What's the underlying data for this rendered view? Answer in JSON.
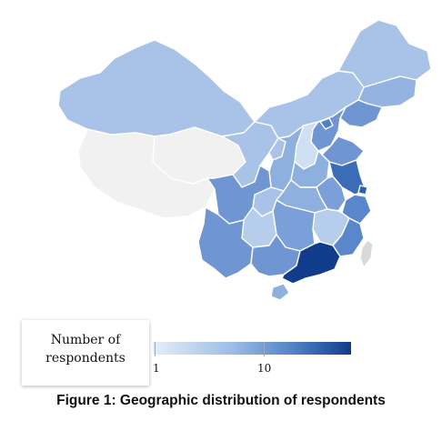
{
  "legend": {
    "title_line1": "Number of",
    "title_line2": "respondents",
    "ticks": [
      "1",
      "10"
    ],
    "scale_colors": [
      "#e6eef9",
      "#9cbde6",
      "#4f7fc6",
      "#113c8c"
    ]
  },
  "caption": "Figure 1: Geographic distribution of respondents",
  "regions": [
    {
      "name": "Xinjiang",
      "level": "low",
      "color": "#a9c3e8"
    },
    {
      "name": "Tibet",
      "level": "none",
      "color": "#f1f1f1"
    },
    {
      "name": "Qinghai",
      "level": "none",
      "color": "#f1f1f1"
    },
    {
      "name": "Gansu",
      "level": "low",
      "color": "#a9c3e8"
    },
    {
      "name": "Inner Mongolia",
      "level": "low",
      "color": "#a9c3e8"
    },
    {
      "name": "Heilongjiang",
      "level": "low",
      "color": "#a9c3e8"
    },
    {
      "name": "Jilin",
      "level": "mid",
      "color": "#94b3e0"
    },
    {
      "name": "Liaoning",
      "level": "mid",
      "color": "#6f95d3"
    },
    {
      "name": "Beijing",
      "level": "high",
      "color": "#4f7fc6"
    },
    {
      "name": "Hebei",
      "level": "mid",
      "color": "#6f95d3"
    },
    {
      "name": "Shanxi",
      "level": "low",
      "color": "#cfe0f4"
    },
    {
      "name": "Shaanxi",
      "level": "mid",
      "color": "#8eb0df"
    },
    {
      "name": "Ningxia",
      "level": "low",
      "color": "#a9c3e8"
    },
    {
      "name": "Shandong",
      "level": "mid",
      "color": "#6f95d3"
    },
    {
      "name": "Henan",
      "level": "mid",
      "color": "#8eb0df"
    },
    {
      "name": "Jiangsu",
      "level": "high",
      "color": "#3b6cb8"
    },
    {
      "name": "Anhui",
      "level": "mid",
      "color": "#7b9fd8"
    },
    {
      "name": "Hubei",
      "level": "mid",
      "color": "#8eb0df"
    },
    {
      "name": "Sichuan",
      "level": "mid",
      "color": "#6f95d3"
    },
    {
      "name": "Chongqing",
      "level": "low",
      "color": "#a9c3e8"
    },
    {
      "name": "Zhejiang",
      "level": "high",
      "color": "#5a86cb"
    },
    {
      "name": "Shanghai",
      "level": "high",
      "color": "#2f5fae"
    },
    {
      "name": "Hunan",
      "level": "mid",
      "color": "#7b9fd8"
    },
    {
      "name": "Jiangxi",
      "level": "low",
      "color": "#b6cdec"
    },
    {
      "name": "Fujian",
      "level": "high",
      "color": "#5a86cb"
    },
    {
      "name": "Guizhou",
      "level": "low",
      "color": "#b6cdec"
    },
    {
      "name": "Yunnan",
      "level": "mid",
      "color": "#6f95d3"
    },
    {
      "name": "Guangxi",
      "level": "mid",
      "color": "#6f95d3"
    },
    {
      "name": "Guangdong",
      "level": "max",
      "color": "#113c8c"
    },
    {
      "name": "Hainan",
      "level": "mid",
      "color": "#8eb0df"
    },
    {
      "name": "Taiwan",
      "level": "none",
      "color": "#d9d9d9"
    }
  ]
}
